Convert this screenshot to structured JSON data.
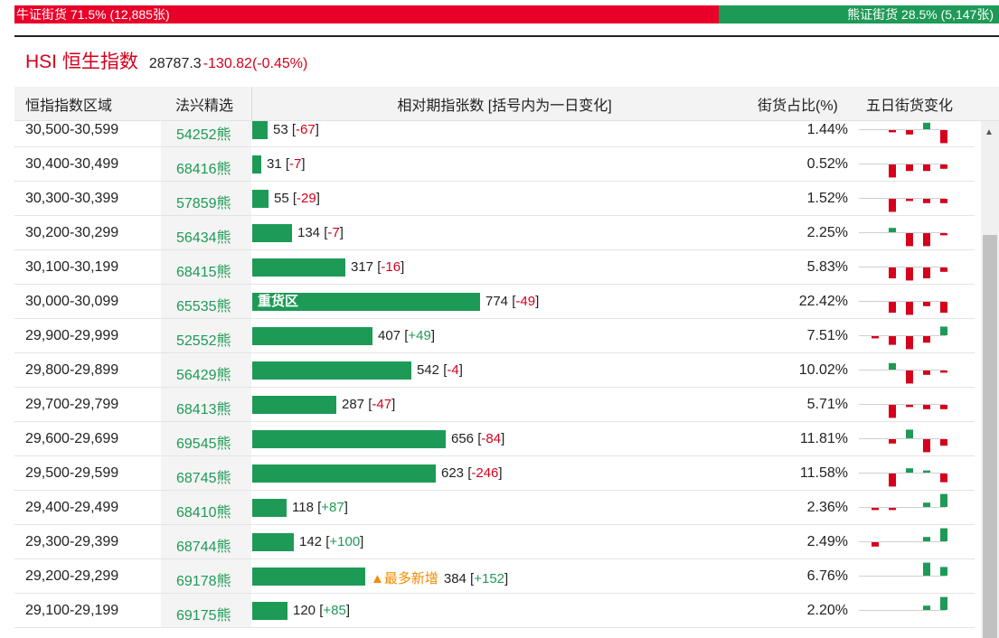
{
  "ratio": {
    "bull_label": "牛证街货 71.5% (12,885张)",
    "bear_label": "熊证街货 28.5% (5,147张)",
    "bull_pct": 71.5,
    "bull_color": "#e8002a",
    "bear_color": "#1e9a57"
  },
  "index": {
    "name": "HSI 恒生指数",
    "value": "28787.3",
    "change": "-130.82(-0.45%)"
  },
  "columns": {
    "range": "恒指指数区域",
    "product": "法兴精选",
    "relative": "相对期指张数 [括号内为一日变化]",
    "ratio": "街货占比(%)",
    "five_day": "五日街货变化"
  },
  "rows": [
    {
      "range": "30,500-30,599",
      "product": "54252熊",
      "count": 53,
      "change": "-67",
      "pct": "1.44%",
      "spark": [
        0,
        -1,
        -2,
        3,
        -6
      ]
    },
    {
      "range": "30,400-30,499",
      "product": "68416熊",
      "count": 31,
      "change": "-7",
      "pct": "0.52%",
      "spark": [
        0,
        -6,
        -3,
        -3,
        -2
      ]
    },
    {
      "range": "30,300-30,399",
      "product": "57859熊",
      "count": 55,
      "change": "-29",
      "pct": "1.52%",
      "spark": [
        0,
        -6,
        -1,
        -2,
        -2
      ]
    },
    {
      "range": "30,200-30,299",
      "product": "56434熊",
      "count": 134,
      "change": "-7",
      "pct": "2.25%",
      "spark": [
        0,
        2,
        -6,
        -6,
        -1
      ]
    },
    {
      "range": "30,100-30,199",
      "product": "68415熊",
      "count": 317,
      "change": "-16",
      "pct": "5.83%",
      "spark": [
        0,
        -5,
        -6,
        -5,
        -2
      ]
    },
    {
      "range": "30,000-30,099",
      "product": "65535熊",
      "count": 774,
      "change": "-49",
      "pct": "22.42%",
      "spark": [
        0,
        -5,
        -6,
        -2,
        -5
      ],
      "tag": "重货区"
    },
    {
      "range": "29,900-29,999",
      "product": "52552熊",
      "count": 407,
      "change": "+49",
      "pct": "7.51%",
      "spark": [
        -1,
        -4,
        -6,
        -3,
        4
      ]
    },
    {
      "range": "29,800-29,899",
      "product": "56429熊",
      "count": 542,
      "change": "-4",
      "pct": "10.02%",
      "spark": [
        0,
        3,
        -6,
        -2,
        -1
      ]
    },
    {
      "range": "29,700-29,799",
      "product": "68413熊",
      "count": 287,
      "change": "-47",
      "pct": "5.71%",
      "spark": [
        0,
        -6,
        -1,
        -2,
        -2
      ]
    },
    {
      "range": "29,600-29,699",
      "product": "69545熊",
      "count": 656,
      "change": "-84",
      "pct": "11.81%",
      "spark": [
        0,
        -2,
        4,
        -6,
        -3
      ]
    },
    {
      "range": "29,500-29,599",
      "product": "68745熊",
      "count": 623,
      "change": "-246",
      "pct": "11.58%",
      "spark": [
        0,
        -6,
        2,
        1,
        -4
      ]
    },
    {
      "range": "29,400-29,499",
      "product": "68410熊",
      "count": 118,
      "change": "+87",
      "pct": "2.36%",
      "spark": [
        -1,
        -1,
        0,
        2,
        6
      ]
    },
    {
      "range": "29,300-29,399",
      "product": "68744熊",
      "count": 142,
      "change": "+100",
      "pct": "2.49%",
      "spark": [
        -2,
        0,
        0,
        2,
        6
      ]
    },
    {
      "range": "29,200-29,299",
      "product": "69178熊",
      "count": 384,
      "change": "+152",
      "pct": "6.76%",
      "spark": [
        0,
        0,
        0,
        6,
        4
      ],
      "new_tag": "▲最多新增"
    },
    {
      "range": "29,100-29,199",
      "product": "69175熊",
      "count": 120,
      "change": "+85",
      "pct": "2.20%",
      "spark": [
        0,
        0,
        0,
        2,
        6
      ]
    }
  ],
  "colors": {
    "up": "#1e9a57",
    "down": "#d5001c",
    "new_tag": "#f08c00"
  }
}
